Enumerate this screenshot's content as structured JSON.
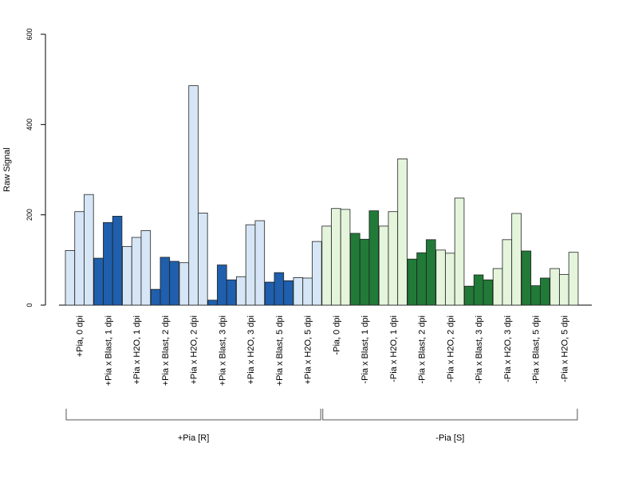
{
  "chart_data": {
    "type": "bar",
    "title": "",
    "xlabel": "",
    "ylabel": "Raw Signal",
    "ylim": [
      0,
      600
    ],
    "yticks": [
      "0",
      "200",
      "400",
      "600"
    ],
    "grid": false,
    "legend": "none",
    "categories": [
      "+Pia, 0 dpi",
      "+Pia x Blast, 1 dpi",
      "+Pia x H2O, 1 dpi",
      "+Pia x Blast, 2 dpi",
      "+Pia x H2O, 2 dpi",
      "+Pia x Blast, 3 dpi",
      "+Pia x H2O, 3 dpi",
      "+Pia x Blast, 5 dpi",
      "+Pia x H2O, 5 dpi",
      "-Pia, 0 dpi",
      "-Pia x Blast, 1 dpi",
      "-Pia x H2O, 1 dpi",
      "-Pia x Blast, 2 dpi",
      "-Pia x H2O, 2 dpi",
      "-Pia x Blast, 3 dpi",
      "-Pia x H2O, 3 dpi",
      "-Pia x Blast, 5 dpi",
      "-Pia x H2O, 5 dpi"
    ],
    "replicates_per_category": 3,
    "values": [
      [
        121,
        207,
        245
      ],
      [
        104,
        183,
        197
      ],
      [
        130,
        150,
        165
      ],
      [
        35,
        106,
        97
      ],
      [
        94,
        486,
        204
      ],
      [
        11,
        89,
        56
      ],
      [
        63,
        178,
        187
      ],
      [
        51,
        72,
        54
      ],
      [
        61,
        60,
        141
      ],
      [
        175,
        214,
        212
      ],
      [
        159,
        146,
        209
      ],
      [
        175,
        207,
        324
      ],
      [
        102,
        116,
        145
      ],
      [
        122,
        115,
        237
      ],
      [
        42,
        67,
        56
      ],
      [
        81,
        145,
        203
      ],
      [
        120,
        43,
        60
      ],
      [
        81,
        68,
        117
      ]
    ],
    "colors": {
      "plus_blast": "#1f5fad",
      "plus_control": "#d6e6f6",
      "minus_blast": "#217a37",
      "minus_control": "#e4f5dc"
    },
    "groups": [
      {
        "label": "+Pia [R]",
        "first_category": 0,
        "last_category": 8
      },
      {
        "label": "-Pia [S]",
        "first_category": 9,
        "last_category": 17
      }
    ]
  }
}
